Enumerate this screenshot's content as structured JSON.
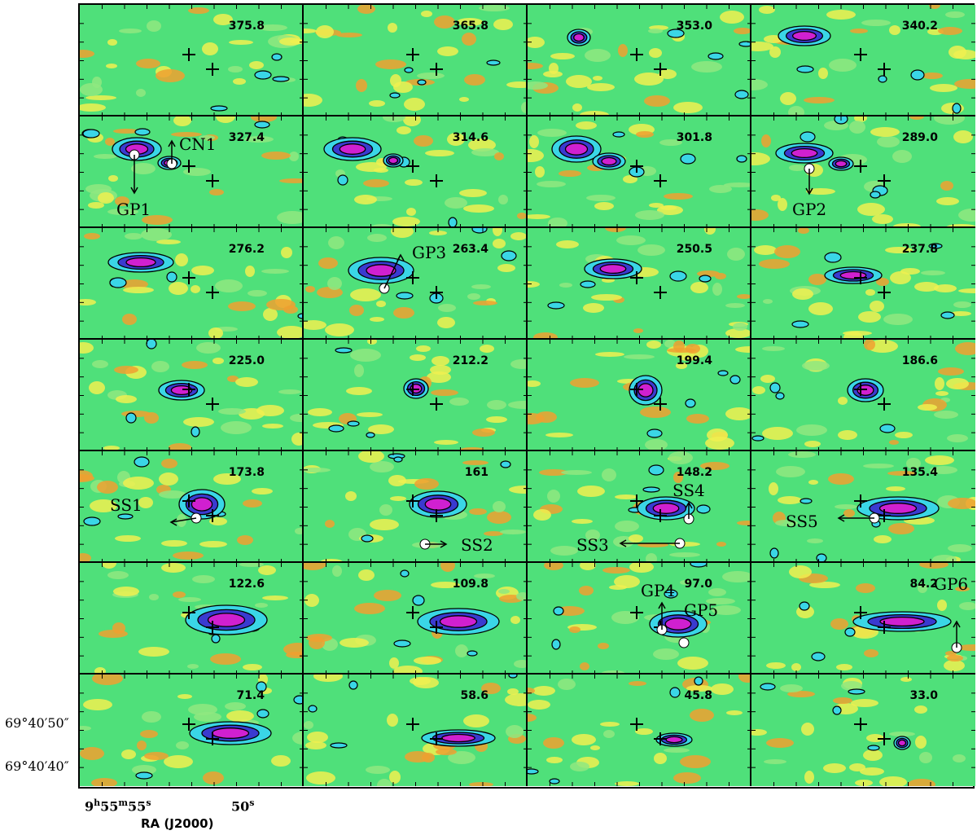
{
  "panels": [
    "375.8",
    "365.8",
    "353.0",
    "340.2",
    "327.4",
    "314.6",
    "301.8",
    "289.0",
    "276.2",
    "263.4",
    "250.5",
    "237.8",
    "225.0",
    "212.2",
    "199.4",
    "186.6",
    "173.8",
    "161",
    "148.2",
    "135.4",
    "122.6",
    "109.8",
    "97.0",
    "84.2",
    "71.4",
    "58.6",
    "45.8",
    "33.0"
  ],
  "annotations": {
    "cn1": "CN1",
    "gp1": "GP1",
    "gp2": "GP2",
    "gp3": "GP3",
    "gp4": "GP4",
    "gp5": "GP5",
    "gp6": "GP6",
    "ss1": "SS1",
    "ss2": "SS2",
    "ss3": "SS3",
    "ss4": "SS4",
    "ss5": "SS5"
  },
  "axes": {
    "dec_tick_top": "69°40′50″",
    "dec_tick_bottom": "69°40′40″",
    "ra_tick_left_h": "9",
    "ra_tick_left_m": "55",
    "ra_tick_left_s": "55",
    "ra_tick_right_s": "50",
    "ra_label": "RA (J2000)"
  },
  "colors": {
    "background_green": "#4fe07a",
    "emission_cyan": "#3ad6e6",
    "emission_blue": "#3a3ad0",
    "emission_magenta": "#d020d0",
    "noise_yellow": "#f0f050",
    "noise_orange": "#f0a030",
    "marker": "#ffffff",
    "contour": "#000000"
  }
}
